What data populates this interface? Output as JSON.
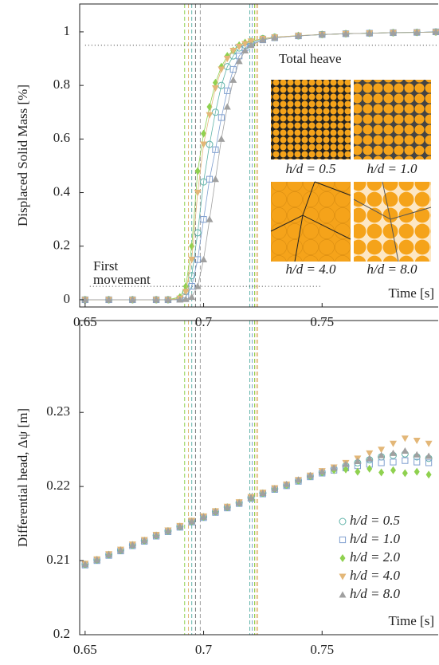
{
  "chart_data": [
    {
      "type": "line",
      "ylabel": "Displaced Solid Mass [%]",
      "xlabel": "Time [s]",
      "connect": true,
      "xlim": [
        0.6477,
        0.799
      ],
      "ylim": [
        -0.027,
        1.104
      ],
      "xticks": [
        0.65,
        0.7,
        0.75
      ],
      "yticks": [
        0,
        0.2,
        0.4,
        0.6,
        0.8,
        1
      ],
      "annotations": [
        "First",
        "movement",
        "Total heave"
      ],
      "insets": [
        "h/d = 0.5",
        "h/d = 1.0",
        "h/d = 4.0",
        "h/d = 8.0"
      ],
      "hlines": [
        {
          "y": 0.05,
          "x": [
            0.652,
            0.75
          ]
        },
        {
          "y": 0.95,
          "x": [
            0.65,
            0.799
          ]
        }
      ],
      "vlines": [
        {
          "x": 0.692,
          "color": "#8fd14f"
        },
        {
          "x": 0.6936,
          "color": "#e3b778"
        },
        {
          "x": 0.695,
          "color": "#5fb3a8"
        },
        {
          "x": 0.6966,
          "color": "#777777"
        },
        {
          "x": 0.6986,
          "color": "#a0a0a0"
        },
        {
          "x": 0.7195,
          "color": "#5fb3a8"
        },
        {
          "x": 0.7205,
          "color": "#7f9fcf"
        },
        {
          "x": 0.7215,
          "color": "#8fd14f"
        },
        {
          "x": 0.7221,
          "color": "#e3b778"
        },
        {
          "x": 0.7228,
          "color": "#d9a85f"
        }
      ],
      "x": [
        0.65,
        0.66,
        0.67,
        0.68,
        0.685,
        0.69,
        0.6925,
        0.695,
        0.6975,
        0.7,
        0.7025,
        0.705,
        0.7075,
        0.71,
        0.7125,
        0.715,
        0.7175,
        0.72,
        0.725,
        0.73,
        0.74,
        0.75,
        0.76,
        0.77,
        0.78,
        0.79,
        0.798
      ],
      "series": [
        {
          "color": "#5fb3a8",
          "marker": "circle",
          "values": [
            0,
            0,
            0,
            0,
            0,
            0.005,
            0.03,
            0.09,
            0.25,
            0.44,
            0.58,
            0.7,
            0.8,
            0.87,
            0.91,
            0.94,
            0.95,
            0.96,
            0.975,
            0.98,
            0.985,
            0.99,
            0.993,
            0.995,
            0.997,
            0.998,
            1.0
          ]
        },
        {
          "color": "#7f9fcf",
          "marker": "square",
          "values": [
            0,
            0,
            0,
            0,
            0,
            0.002,
            0.01,
            0.05,
            0.15,
            0.3,
            0.45,
            0.56,
            0.68,
            0.78,
            0.86,
            0.91,
            0.94,
            0.955,
            0.97,
            0.978,
            0.985,
            0.99,
            0.993,
            0.995,
            0.997,
            0.998,
            1.0
          ]
        },
        {
          "color": "#8fd14f",
          "marker": "diamond",
          "values": [
            0,
            0,
            0,
            0,
            0,
            0.01,
            0.05,
            0.2,
            0.48,
            0.62,
            0.72,
            0.81,
            0.87,
            0.91,
            0.93,
            0.95,
            0.96,
            0.965,
            0.975,
            0.98,
            0.986,
            0.99,
            0.993,
            0.995,
            0.997,
            0.998,
            0.999
          ]
        },
        {
          "color": "#e3b778",
          "marker": "triangle-down",
          "values": [
            0,
            0,
            0,
            0,
            0,
            0.005,
            0.03,
            0.15,
            0.4,
            0.58,
            0.69,
            0.79,
            0.86,
            0.9,
            0.93,
            0.945,
            0.955,
            0.965,
            0.975,
            0.98,
            0.986,
            0.99,
            0.993,
            0.995,
            0.997,
            0.998,
            0.999
          ]
        },
        {
          "color": "#a0a0a0",
          "marker": "triangle-up",
          "values": [
            0,
            0,
            0,
            0,
            0,
            0,
            0.002,
            0.01,
            0.05,
            0.15,
            0.3,
            0.45,
            0.6,
            0.72,
            0.82,
            0.89,
            0.93,
            0.95,
            0.97,
            0.978,
            0.985,
            0.99,
            0.993,
            0.995,
            0.997,
            0.998,
            1.0
          ]
        }
      ]
    },
    {
      "type": "scatter",
      "ylabel": "Differential head, Δψ [m]",
      "xlabel": "Time [s]",
      "legend": "lower right",
      "xlim": [
        0.6477,
        0.799
      ],
      "ylim": [
        0.2,
        0.2424
      ],
      "xticks": [
        0.65,
        0.7,
        0.75
      ],
      "yticks": [
        0.2,
        0.21,
        0.22,
        0.23
      ],
      "vlines": [
        {
          "x": 0.692,
          "color": "#8fd14f"
        },
        {
          "x": 0.6936,
          "color": "#e3b778"
        },
        {
          "x": 0.695,
          "color": "#5fb3a8"
        },
        {
          "x": 0.6966,
          "color": "#777777"
        },
        {
          "x": 0.6986,
          "color": "#a0a0a0"
        },
        {
          "x": 0.7195,
          "color": "#5fb3a8"
        },
        {
          "x": 0.7205,
          "color": "#7f9fcf"
        },
        {
          "x": 0.7215,
          "color": "#8fd14f"
        },
        {
          "x": 0.7221,
          "color": "#e3b778"
        },
        {
          "x": 0.7228,
          "color": "#d9a85f"
        }
      ],
      "x": [
        0.65,
        0.655,
        0.66,
        0.665,
        0.67,
        0.675,
        0.68,
        0.685,
        0.69,
        0.695,
        0.7,
        0.705,
        0.71,
        0.715,
        0.72,
        0.725,
        0.73,
        0.735,
        0.74,
        0.745,
        0.75,
        0.755,
        0.76,
        0.765,
        0.77,
        0.775,
        0.78,
        0.785,
        0.79,
        0.795
      ],
      "series": [
        {
          "name": "h/d = 0.5",
          "color": "#5fb3a8",
          "marker": "circle",
          "values": [
            0.2095,
            0.2101,
            0.2108,
            0.2114,
            0.2121,
            0.2127,
            0.2134,
            0.214,
            0.2146,
            0.2153,
            0.2159,
            0.2166,
            0.2172,
            0.2178,
            0.2185,
            0.2191,
            0.2197,
            0.2202,
            0.2208,
            0.2214,
            0.2219,
            0.2224,
            0.2228,
            0.2232,
            0.2236,
            0.224,
            0.2242,
            0.2244,
            0.224,
            0.2238
          ]
        },
        {
          "name": "h/d = 1.0",
          "color": "#7f9fcf",
          "marker": "square",
          "values": [
            0.2094,
            0.21,
            0.2107,
            0.2113,
            0.212,
            0.2126,
            0.2133,
            0.2139,
            0.2145,
            0.2152,
            0.2158,
            0.2165,
            0.2171,
            0.2177,
            0.2184,
            0.219,
            0.2196,
            0.2201,
            0.2207,
            0.2213,
            0.2218,
            0.2222,
            0.2225,
            0.2228,
            0.223,
            0.2232,
            0.2233,
            0.2235,
            0.2233,
            0.2232
          ]
        },
        {
          "name": "h/d = 2.0",
          "color": "#8fd14f",
          "marker": "diamond",
          "values": [
            0.2095,
            0.2101,
            0.2108,
            0.2114,
            0.2121,
            0.2127,
            0.2134,
            0.214,
            0.2146,
            0.2153,
            0.2159,
            0.2166,
            0.2172,
            0.2178,
            0.2185,
            0.2191,
            0.2197,
            0.2202,
            0.2208,
            0.2214,
            0.2219,
            0.2222,
            0.2223,
            0.222,
            0.2224,
            0.2219,
            0.2222,
            0.2218,
            0.222,
            0.2216
          ]
        },
        {
          "name": "h/d = 4.0",
          "color": "#e3b778",
          "marker": "triangle-down",
          "values": [
            0.2096,
            0.2102,
            0.2109,
            0.2115,
            0.2122,
            0.2128,
            0.2135,
            0.2141,
            0.2147,
            0.2154,
            0.216,
            0.2167,
            0.2173,
            0.2179,
            0.2186,
            0.2192,
            0.2198,
            0.2203,
            0.2209,
            0.2215,
            0.2221,
            0.2226,
            0.2232,
            0.2238,
            0.2245,
            0.225,
            0.2258,
            0.2265,
            0.2262,
            0.2258
          ]
        },
        {
          "name": "h/d = 8.0",
          "color": "#a0a0a0",
          "marker": "triangle-up",
          "values": [
            0.2095,
            0.2101,
            0.2108,
            0.2114,
            0.2121,
            0.2127,
            0.2134,
            0.214,
            0.2146,
            0.2153,
            0.2159,
            0.2166,
            0.2172,
            0.2178,
            0.2185,
            0.2191,
            0.2197,
            0.2203,
            0.2209,
            0.2215,
            0.222,
            0.2225,
            0.223,
            0.2234,
            0.2238,
            0.2242,
            0.2245,
            0.2248,
            0.2243,
            0.2241
          ]
        }
      ]
    }
  ]
}
